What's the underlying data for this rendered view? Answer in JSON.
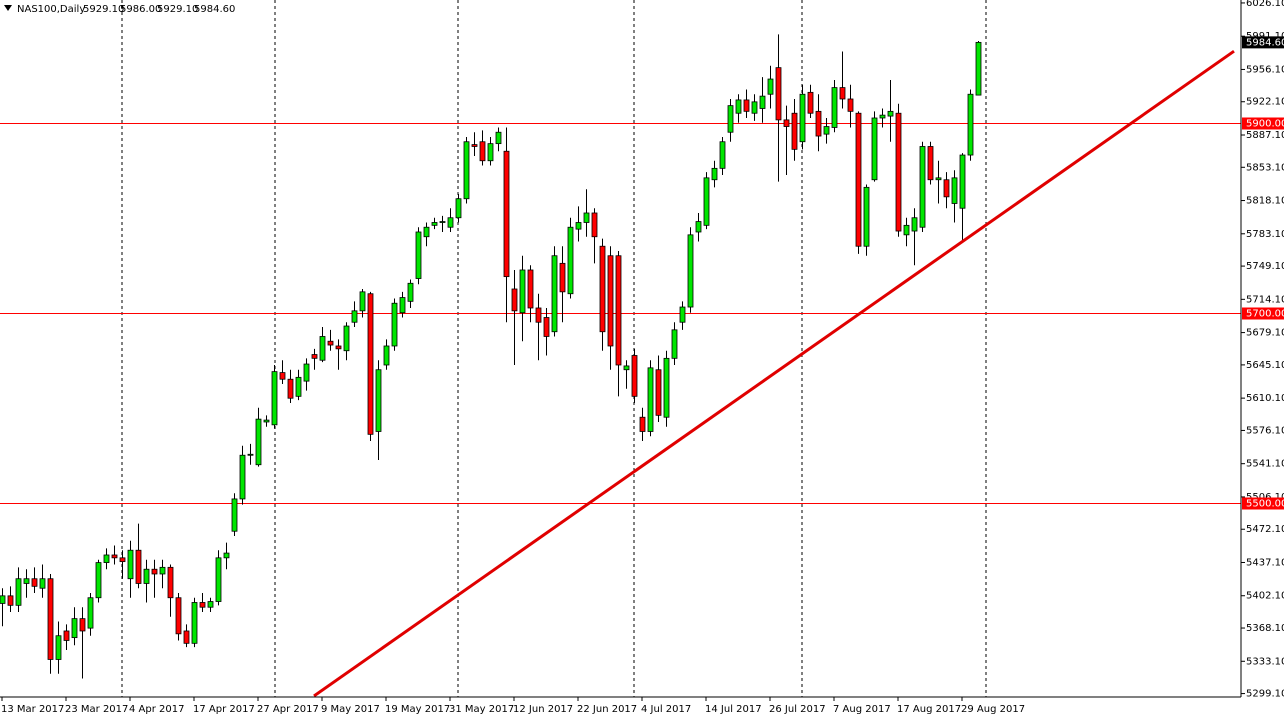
{
  "chart_data": {
    "type": "candlestick",
    "header": {
      "symbol": "NAS100,Daily",
      "ohlc_text": [
        "5929.10",
        "5986.00",
        "5929.10",
        "5984.60"
      ]
    },
    "categories": [
      "13 Mar 2017",
      null,
      null,
      null,
      null,
      null,
      null,
      null,
      "23 Mar 2017",
      null,
      null,
      null,
      null,
      null,
      null,
      null,
      "4 Apr 2017",
      null,
      null,
      null,
      null,
      null,
      null,
      null,
      "17 Apr 2017",
      null,
      null,
      null,
      null,
      null,
      null,
      null,
      "27 Apr 2017",
      null,
      null,
      null,
      null,
      null,
      null,
      null,
      "9 May 2017",
      null,
      null,
      null,
      null,
      null,
      null,
      null,
      "19 May 2017",
      null,
      null,
      null,
      null,
      null,
      null,
      null,
      "31 May 2017",
      null,
      null,
      null,
      null,
      null,
      null,
      null,
      "12 Jun 2017",
      null,
      null,
      null,
      null,
      null,
      null,
      null,
      "22 Jun 2017",
      null,
      null,
      null,
      null,
      null,
      null,
      null,
      "4 Jul 2017",
      null,
      null,
      null,
      null,
      null,
      null,
      null,
      "14 Jul 2017",
      null,
      null,
      null,
      null,
      null,
      null,
      null,
      "26 Jul 2017",
      null,
      null,
      null,
      null,
      null,
      null,
      null,
      "7 Aug 2017",
      null,
      null,
      null,
      null,
      null,
      null,
      null,
      "17 Aug 2017",
      null,
      null,
      null,
      null,
      null,
      null,
      null,
      "29 Aug 2017",
      null,
      null
    ],
    "open": [
      5394,
      5402,
      5392,
      5415,
      5420,
      5410,
      5420,
      5335,
      5365,
      5358,
      5378,
      5368,
      5400,
      5437,
      5445,
      5442,
      5420,
      5450,
      5415,
      5430,
      5425,
      5432,
      5400,
      5365,
      5352,
      5395,
      5390,
      5396,
      5442,
      5470,
      5504,
      5550,
      5540,
      5585,
      5582,
      5637,
      5630,
      5612,
      5628,
      5656,
      5650,
      5670,
      5665,
      5660,
      5690,
      5702,
      5720,
      5575,
      5645,
      5665,
      5700,
      5712,
      5736,
      5780,
      5792,
      5795,
      5790,
      5800,
      5820,
      5877,
      5880,
      5860,
      5878,
      5870,
      5725,
      5700,
      5745,
      5705,
      5695,
      5680,
      5752,
      5720,
      5788,
      5795,
      5805,
      5770,
      5760,
      5760,
      5640,
      5655,
      5590,
      5575,
      5640,
      5590,
      5652,
      5690,
      5706,
      5785,
      5792,
      5840,
      5852,
      5890,
      5910,
      5924,
      5910,
      5915,
      5930,
      5958,
      5903,
      5910,
      5880,
      5932,
      5912,
      5888,
      5895,
      5937,
      5925,
      5910,
      5770,
      5840,
      5905,
      5907,
      5910,
      5782,
      5786,
      5790,
      5875,
      5840,
      5840,
      5815,
      5810,
      5866,
      5929.1
    ],
    "high": [
      5410,
      5412,
      5432,
      5430,
      5432,
      5435,
      5425,
      5375,
      5372,
      5390,
      5390,
      5405,
      5440,
      5452,
      5455,
      5450,
      5460,
      5478,
      5440,
      5440,
      5440,
      5435,
      5405,
      5372,
      5400,
      5405,
      5400,
      5450,
      5458,
      5510,
      5560,
      5562,
      5600,
      5592,
      5645,
      5650,
      5640,
      5640,
      5652,
      5662,
      5685,
      5682,
      5672,
      5690,
      5712,
      5725,
      5722,
      5650,
      5672,
      5715,
      5722,
      5735,
      5790,
      5795,
      5800,
      5802,
      5810,
      5825,
      5885,
      5890,
      5892,
      5885,
      5895,
      5895,
      5745,
      5760,
      5750,
      5720,
      5705,
      5770,
      5770,
      5800,
      5812,
      5830,
      5810,
      5778,
      5770,
      5765,
      5650,
      5662,
      5600,
      5650,
      5655,
      5660,
      5690,
      5712,
      5790,
      5805,
      5848,
      5860,
      5885,
      5925,
      5930,
      5935,
      5930,
      5948,
      5960,
      5993,
      5918,
      5925,
      5940,
      5940,
      5930,
      5905,
      5945,
      5975,
      5940,
      5912,
      5835,
      5912,
      5915,
      5945,
      5920,
      5800,
      5810,
      5880,
      5880,
      5860,
      5848,
      5850,
      5868,
      5935,
      5986
    ],
    "low": [
      5370,
      5385,
      5385,
      5400,
      5405,
      5400,
      5320,
      5320,
      5345,
      5350,
      5315,
      5360,
      5395,
      5430,
      5435,
      5420,
      5400,
      5410,
      5395,
      5400,
      5410,
      5380,
      5355,
      5348,
      5348,
      5385,
      5385,
      5392,
      5430,
      5465,
      5498,
      5540,
      5538,
      5580,
      5578,
      5625,
      5605,
      5608,
      5618,
      5640,
      5648,
      5660,
      5640,
      5650,
      5685,
      5695,
      5565,
      5545,
      5640,
      5660,
      5695,
      5705,
      5730,
      5770,
      5788,
      5785,
      5785,
      5795,
      5815,
      5865,
      5855,
      5855,
      5870,
      5690,
      5645,
      5670,
      5690,
      5650,
      5655,
      5675,
      5690,
      5715,
      5775,
      5780,
      5752,
      5660,
      5640,
      5612,
      5620,
      5605,
      5565,
      5570,
      5585,
      5580,
      5645,
      5682,
      5700,
      5775,
      5788,
      5832,
      5845,
      5880,
      5900,
      5905,
      5902,
      5900,
      5915,
      5838,
      5845,
      5860,
      5872,
      5905,
      5870,
      5878,
      5890,
      5915,
      5895,
      5762,
      5760,
      5838,
      5895,
      5880,
      5780,
      5770,
      5750,
      5785,
      5835,
      5815,
      5810,
      5795,
      5775,
      5860,
      5929.1
    ],
    "close": [
      5402,
      5392,
      5420,
      5420,
      5412,
      5420,
      5335,
      5360,
      5355,
      5378,
      5365,
      5400,
      5437,
      5445,
      5442,
      5438,
      5450,
      5415,
      5430,
      5425,
      5432,
      5400,
      5362,
      5352,
      5395,
      5390,
      5396,
      5442,
      5447,
      5504,
      5550,
      5551,
      5588,
      5587,
      5638,
      5630,
      5610,
      5632,
      5646,
      5652,
      5675,
      5666,
      5662,
      5686,
      5702,
      5722,
      5572,
      5640,
      5665,
      5710,
      5716,
      5731,
      5785,
      5790,
      5795,
      5796,
      5800,
      5820,
      5880,
      5875,
      5860,
      5878,
      5890,
      5738,
      5702,
      5745,
      5705,
      5690,
      5675,
      5760,
      5722,
      5790,
      5795,
      5805,
      5780,
      5680,
      5665,
      5645,
      5644,
      5612,
      5575,
      5642,
      5592,
      5652,
      5682,
      5706,
      5782,
      5796,
      5842,
      5852,
      5880,
      5918,
      5924,
      5912,
      5922,
      5928,
      5946,
      5903,
      5896,
      5872,
      5930,
      5910,
      5886,
      5896,
      5937,
      5925,
      5912,
      5770,
      5832,
      5905,
      5908,
      5912,
      5786,
      5792,
      5800,
      5875,
      5840,
      5842,
      5822,
      5842,
      5866,
      5930,
      5984.6
    ],
    "up_color": "#00e600",
    "down_color": "#ff0000",
    "last_price": {
      "value": 5984.6,
      "label": "5984.60"
    },
    "ylim": [
      5295.5,
      6029.2
    ],
    "yticks": [
      {
        "value": 6026.1,
        "label": "6026.10"
      },
      {
        "value": 5991.1,
        "label": "5991.10"
      },
      {
        "value": 5956.1,
        "label": "5956.10"
      },
      {
        "value": 5922.1,
        "label": "5922.10"
      },
      {
        "value": 5887.1,
        "label": "5887.10"
      },
      {
        "value": 5853.1,
        "label": "5853.10"
      },
      {
        "value": 5818.1,
        "label": "5818.10"
      },
      {
        "value": 5783.1,
        "label": "5783.10"
      },
      {
        "value": 5749.1,
        "label": "5749.10"
      },
      {
        "value": 5714.1,
        "label": "5714.10"
      },
      {
        "value": 5679.1,
        "label": "5679.10"
      },
      {
        "value": 5645.1,
        "label": "5645.10"
      },
      {
        "value": 5610.1,
        "label": "5610.10"
      },
      {
        "value": 5576.1,
        "label": "5576.10"
      },
      {
        "value": 5541.1,
        "label": "5541.10"
      },
      {
        "value": 5506.1,
        "label": "5506.10"
      },
      {
        "value": 5472.1,
        "label": "5472.10"
      },
      {
        "value": 5437.1,
        "label": "5437.10"
      },
      {
        "value": 5402.1,
        "label": "5402.10"
      },
      {
        "value": 5368.1,
        "label": "5368.10"
      },
      {
        "value": 5333.1,
        "label": "5333.10"
      },
      {
        "value": 5299.1,
        "label": "5299.10"
      }
    ],
    "levels": [
      {
        "value": 5900,
        "label": "5900.00"
      },
      {
        "value": 5700,
        "label": "5700.00"
      },
      {
        "value": 5500,
        "label": "5500.00"
      }
    ],
    "level_color": "#ff0000",
    "trendline": {
      "x": [
        39,
        154
      ],
      "y": [
        5296.6,
        5975.3
      ],
      "color": "#e00000"
    }
  }
}
